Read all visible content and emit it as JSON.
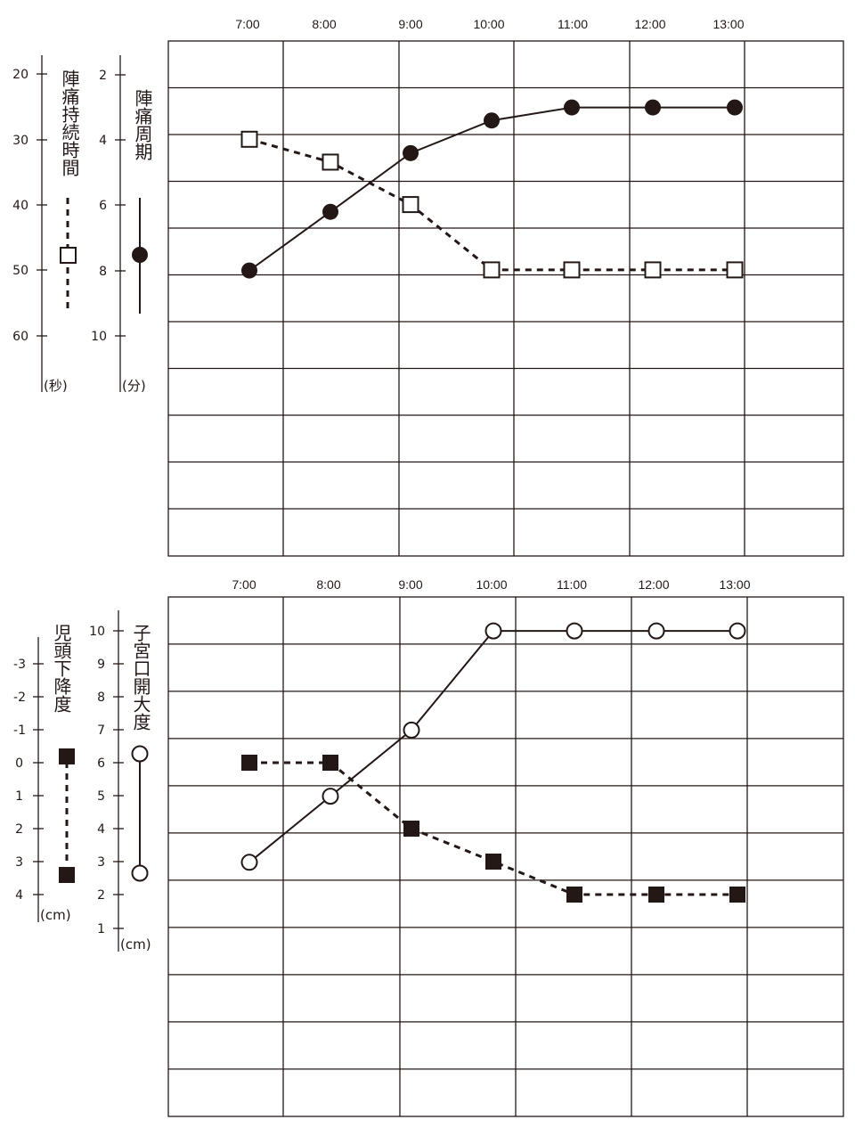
{
  "chart_data": [
    {
      "type": "line",
      "x": [
        "7:00",
        "8:00",
        "9:00",
        "10:00",
        "11:00",
        "12:00",
        "13:00"
      ],
      "axes": {
        "left_outer": {
          "label": "陣痛持続時間",
          "unit": "(秒)",
          "ticks": [
            20,
            30,
            40,
            50,
            60
          ]
        },
        "left_inner": {
          "label": "陣痛周期",
          "unit": "(分)",
          "ticks": [
            2,
            4,
            6,
            8,
            10
          ]
        }
      },
      "series": [
        {
          "name": "陣痛持続時間",
          "axis": "left_outer",
          "line": "dashed",
          "marker": "open-square",
          "values": [
            30,
            33.5,
            40,
            50,
            50,
            50,
            50
          ]
        },
        {
          "name": "陣痛周期",
          "axis": "left_inner",
          "line": "solid",
          "marker": "filled-circle",
          "values": [
            8,
            6.2,
            4.4,
            3.4,
            3.0,
            3.0,
            3.0
          ]
        }
      ],
      "grid": true,
      "legend": "left"
    },
    {
      "type": "line",
      "x": [
        "7:00",
        "8:00",
        "9:00",
        "10:00",
        "11:00",
        "12:00",
        "13:00"
      ],
      "axes": {
        "left_outer": {
          "label": "児頭下降度",
          "unit": "(cm)",
          "ticks": [
            -3,
            -2,
            -1,
            0,
            1,
            2,
            3,
            4
          ]
        },
        "left_inner": {
          "label": "子宮口開大度",
          "unit": "(cm)",
          "ticks": [
            1,
            2,
            3,
            4,
            5,
            6,
            7,
            8,
            9,
            10
          ]
        }
      },
      "series": [
        {
          "name": "児頭下降度",
          "axis": "left_outer",
          "line": "dashed",
          "marker": "filled-square",
          "values": [
            0,
            0,
            2,
            3,
            4,
            4,
            4
          ]
        },
        {
          "name": "子宮口開大度",
          "axis": "left_inner",
          "line": "solid",
          "marker": "open-circle",
          "values": [
            3,
            5,
            7,
            10,
            10,
            10,
            10
          ]
        }
      ],
      "grid": true,
      "legend": "left"
    }
  ]
}
